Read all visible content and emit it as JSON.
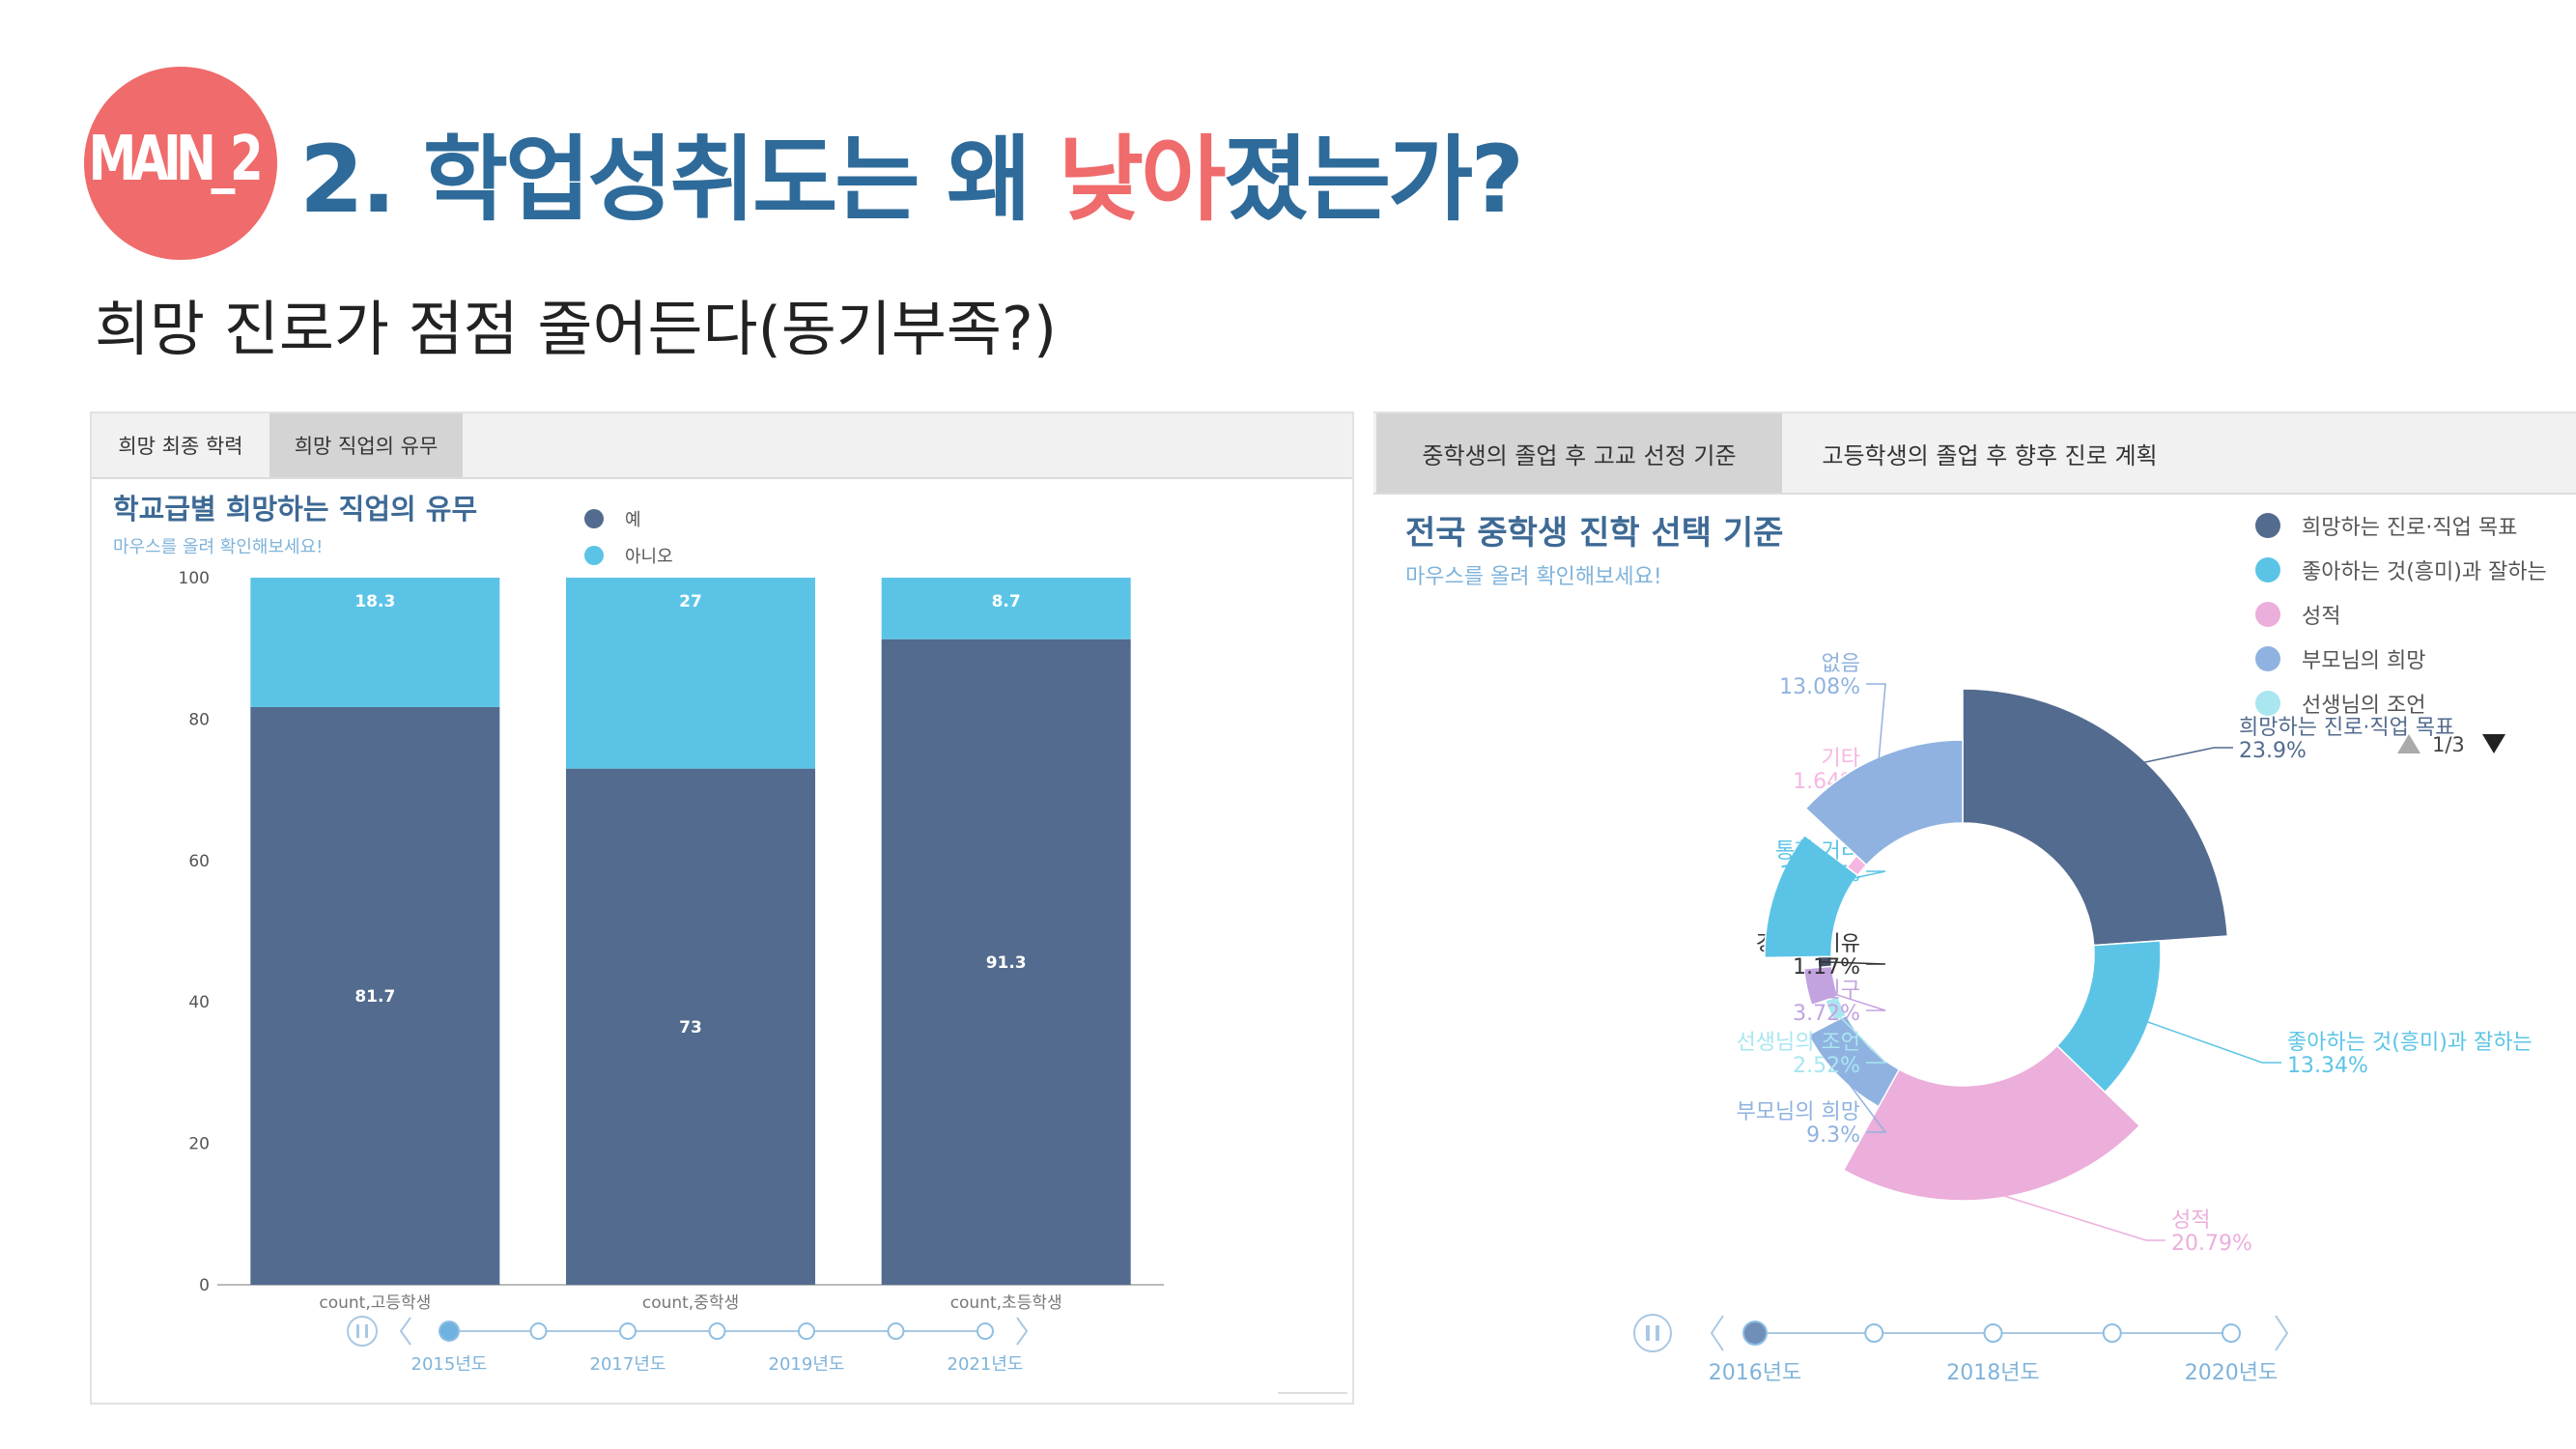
{
  "header": {
    "badge": "MAIN_2",
    "title_prefix": "2. 학업성취도는 왜 ",
    "title_highlight": "낮아",
    "title_suffix": "졌는가?",
    "subtitle": "희망 진로가 점점 줄어든다(동기부족?)"
  },
  "left_panel": {
    "tabs": [
      "희망 최종 학력",
      "희망 직업의 유무"
    ],
    "active_tab": 1,
    "chart_title": "학교급별 희망하는 직업의 유무",
    "hint": "마우스를 올려 확인해보세요!",
    "timeline": {
      "play_icon": "pause-icon",
      "labels": [
        "2015년도",
        "2017년도",
        "2019년도",
        "2021년도"
      ],
      "current": "2015년도"
    }
  },
  "right_panel": {
    "tabs": [
      "중학생의 졸업 후 고교 선정 기준",
      "고등학생의 졸업 후 향후 진로 계획"
    ],
    "active_tab": 0,
    "chart_title": "전국 중학생 진학 선택 기준",
    "hint": "마우스를 올려 확인해보세요!",
    "legend_pager": "1/3",
    "timeline": {
      "play_icon": "pause-icon",
      "labels": [
        "2016년도",
        "2018년도",
        "2020년도"
      ],
      "current": "2016년도"
    }
  },
  "colors": {
    "badge": "#f06b6b",
    "title": "#2e6b9a",
    "yes": "#536b8e",
    "no": "#5bc4e6",
    "pie_hope": "#536b8e",
    "pie_like": "#5bc4e6",
    "pie_grade": "#ecaedb",
    "pie_parent": "#90b2e0",
    "pie_teacher": "#a9e6f0",
    "pie_friend": "#c2a3e0",
    "pie_econ": "#444e66",
    "pie_distance": "#5bc4e6",
    "pie_etc": "#f5b7e2",
    "pie_none": "#90b2e0"
  },
  "chart_data": [
    {
      "type": "bar",
      "stacked": true,
      "title": "학교급별 희망하는 직업의 유무",
      "categories": [
        "count,고등학생",
        "count,중학생",
        "count,초등학생"
      ],
      "series": [
        {
          "name": "예",
          "values": [
            81.7,
            73,
            91.3
          ]
        },
        {
          "name": "아니오",
          "values": [
            18.3,
            27,
            8.7
          ]
        }
      ],
      "ylim": [
        0,
        100
      ],
      "yticks": [
        0,
        20,
        40,
        60,
        80,
        100
      ],
      "legend": "top"
    },
    {
      "type": "pie",
      "donut": true,
      "title": "전국 중학생 진학 선택 기준",
      "legend": "top-right",
      "legend_entries": [
        "희망하는 진로·직업 목표",
        "좋아하는 것(흥미)과 잘하는",
        "성적",
        "부모님의 희망",
        "선생님의 조언"
      ],
      "slices": [
        {
          "label": "희망하는 진로·직업 목표",
          "value": 23.9,
          "value_label": "23.9%",
          "color_key": "pie_hope",
          "callout": "희망하는 진로·직업 목표"
        },
        {
          "label": "좋아하는 것(흥미)과 잘하는",
          "value": 13.34,
          "value_label": "13.34%",
          "color_key": "pie_like",
          "callout": "좋아하는 것(흥미)과 잘하는"
        },
        {
          "label": "성적",
          "value": 20.79,
          "value_label": "20.79%",
          "color_key": "pie_grade",
          "callout": "성적"
        },
        {
          "label": "부모님의 희망",
          "value": 9.3,
          "value_label": "9.3%",
          "color_key": "pie_parent",
          "callout": "부모님의 희망"
        },
        {
          "label": "선생님의 조언",
          "value": 2.52,
          "value_label": "2.52%",
          "color_key": "pie_teacher",
          "callout": "선생님의 조언"
        },
        {
          "label": "친구",
          "value": 3.72,
          "value_label": "3.72%",
          "color_key": "pie_friend",
          "callout": "친구"
        },
        {
          "label": "경제적 이유",
          "value": 1.17,
          "value_label": "1.17%",
          "color_key": "pie_econ",
          "callout": "경제적 이유"
        },
        {
          "label": "통학 거리",
          "value": 10.54,
          "value_label": "10.54%",
          "color_key": "pie_distance",
          "callout": "통학 거리"
        },
        {
          "label": "기타",
          "value": 1.64,
          "value_label": "1.64%",
          "color_key": "pie_etc",
          "callout": "기타"
        },
        {
          "label": "없음",
          "value": 13.08,
          "value_label": "13.08%",
          "color_key": "pie_none",
          "callout": "없음"
        }
      ]
    }
  ]
}
